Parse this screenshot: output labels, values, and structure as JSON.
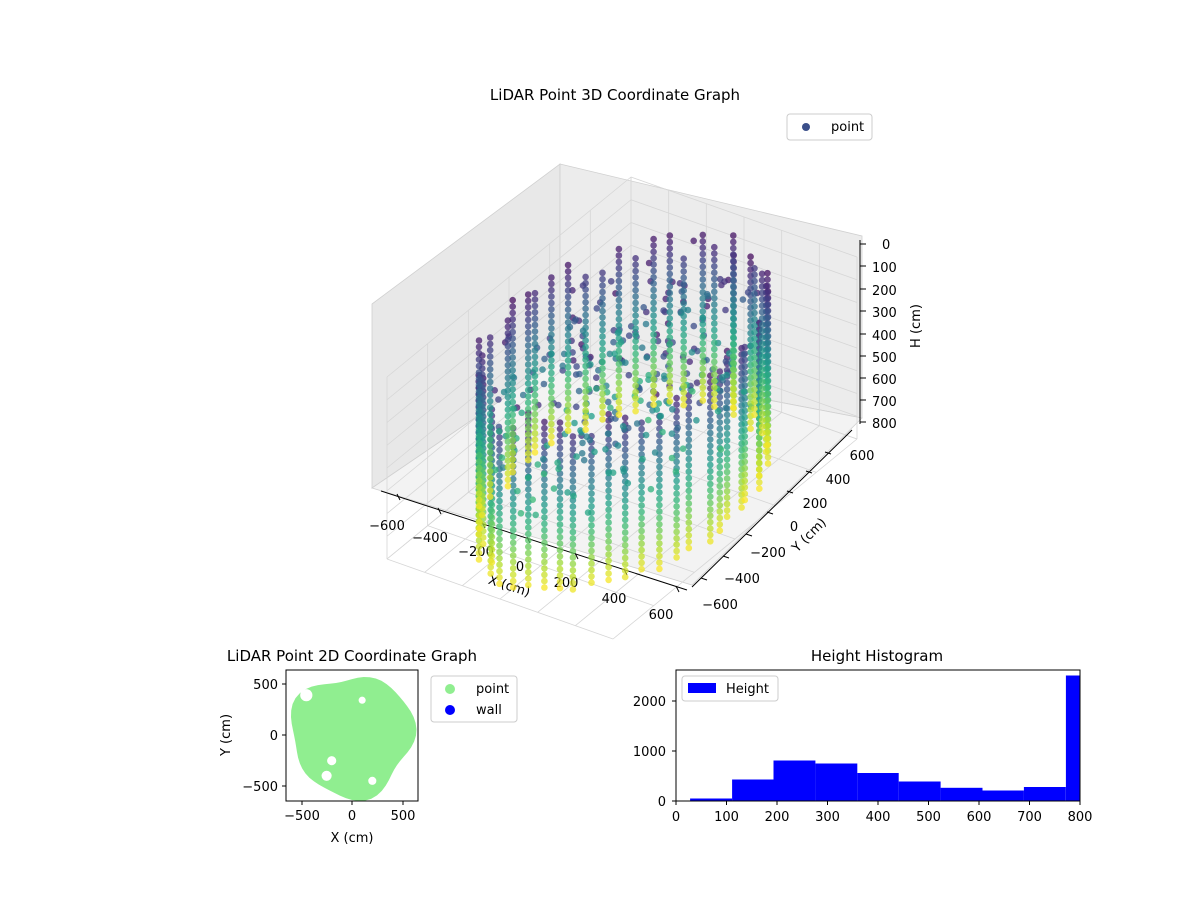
{
  "chart_data": [
    {
      "type": "scatter3d",
      "title": "LiDAR Point 3D Coordinate Graph",
      "xlabel": "X (cm)",
      "ylabel": "Y (cm)",
      "zlabel": "H (cm)",
      "xlim": [
        -600,
        600
      ],
      "ylim": [
        -600,
        600
      ],
      "zlim": [
        0,
        800
      ],
      "z_axis_inverted": true,
      "xticks": [
        "−600",
        "−400",
        "−200",
        "0",
        "200",
        "400",
        "600"
      ],
      "yticks": [
        "−600",
        "−400",
        "−200",
        "0",
        "200",
        "400",
        "600"
      ],
      "zticks": [
        "0",
        "100",
        "200",
        "300",
        "400",
        "500",
        "600",
        "700",
        "800"
      ],
      "colormap": "viridis",
      "legend": [
        {
          "label": "point",
          "color": "#3b4f8a"
        }
      ],
      "legend_position": "upper-right",
      "grid": true,
      "description_of_shape": {
        "ring_radius": 520,
        "num_columns": 52,
        "height_range": [
          0,
          800
        ]
      }
    },
    {
      "type": "scatter",
      "title": "LiDAR Point 2D Coordinate Graph",
      "xlabel": "X (cm)",
      "ylabel": "Y (cm)",
      "xlim": [
        -650,
        650
      ],
      "ylim": [
        -650,
        650
      ],
      "xticks": [
        "−500",
        "0",
        "500"
      ],
      "yticks": [
        "−500",
        "0",
        "500"
      ],
      "series": [
        {
          "name": "point",
          "color": "#90ee90"
        },
        {
          "name": "wall",
          "color": "#0000ff"
        }
      ],
      "legend_position": "outside-right"
    },
    {
      "type": "bar",
      "title": "Height Histogram",
      "xlabel": "",
      "ylabel": "",
      "xlim": [
        0,
        800
      ],
      "ylim": [
        0,
        2620
      ],
      "xticks": [
        "0",
        "100",
        "200",
        "300",
        "400",
        "500",
        "600",
        "700",
        "800"
      ],
      "yticks": [
        "0",
        "1000",
        "2000"
      ],
      "bin_edges": [
        28,
        111,
        193,
        276,
        359,
        441,
        524,
        607,
        689,
        772,
        800
      ],
      "values": [
        50,
        430,
        810,
        750,
        560,
        390,
        265,
        210,
        280,
        2510
      ],
      "color": "#0000ff",
      "legend": [
        {
          "label": "Height",
          "color": "#0000ff"
        }
      ],
      "legend_position": "upper-left"
    }
  ]
}
